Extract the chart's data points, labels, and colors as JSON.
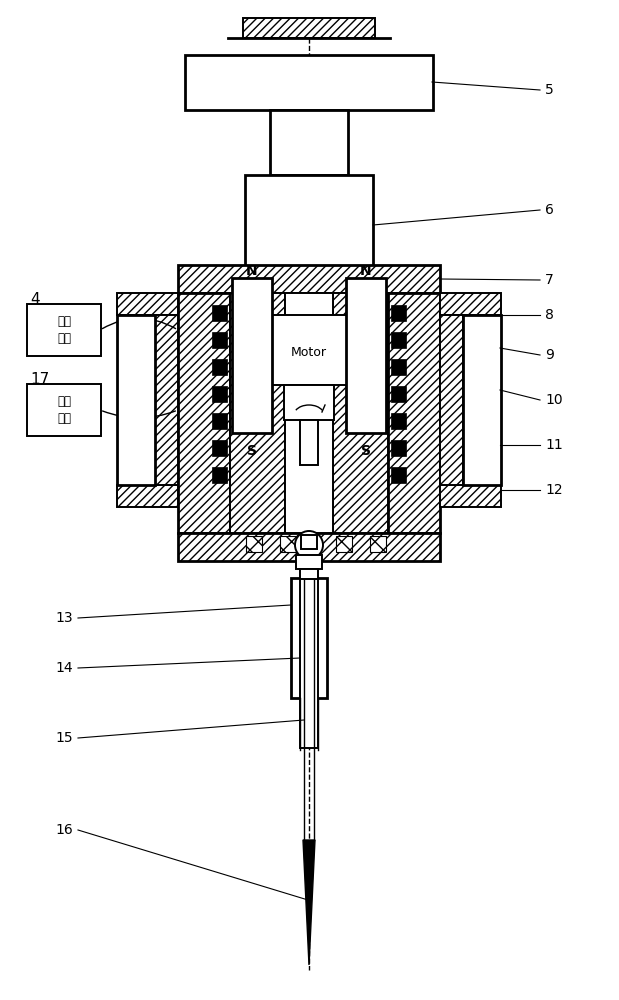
{
  "bg_color": "#ffffff",
  "line_color": "#000000",
  "fig_width": 6.19,
  "fig_height": 10.0,
  "label_4_text": "超声\n电源",
  "label_17_text": "激励\n电源",
  "motor_text": "Motor",
  "N_left": "N",
  "N_right": "N",
  "S_left": "S",
  "S_right": "S"
}
